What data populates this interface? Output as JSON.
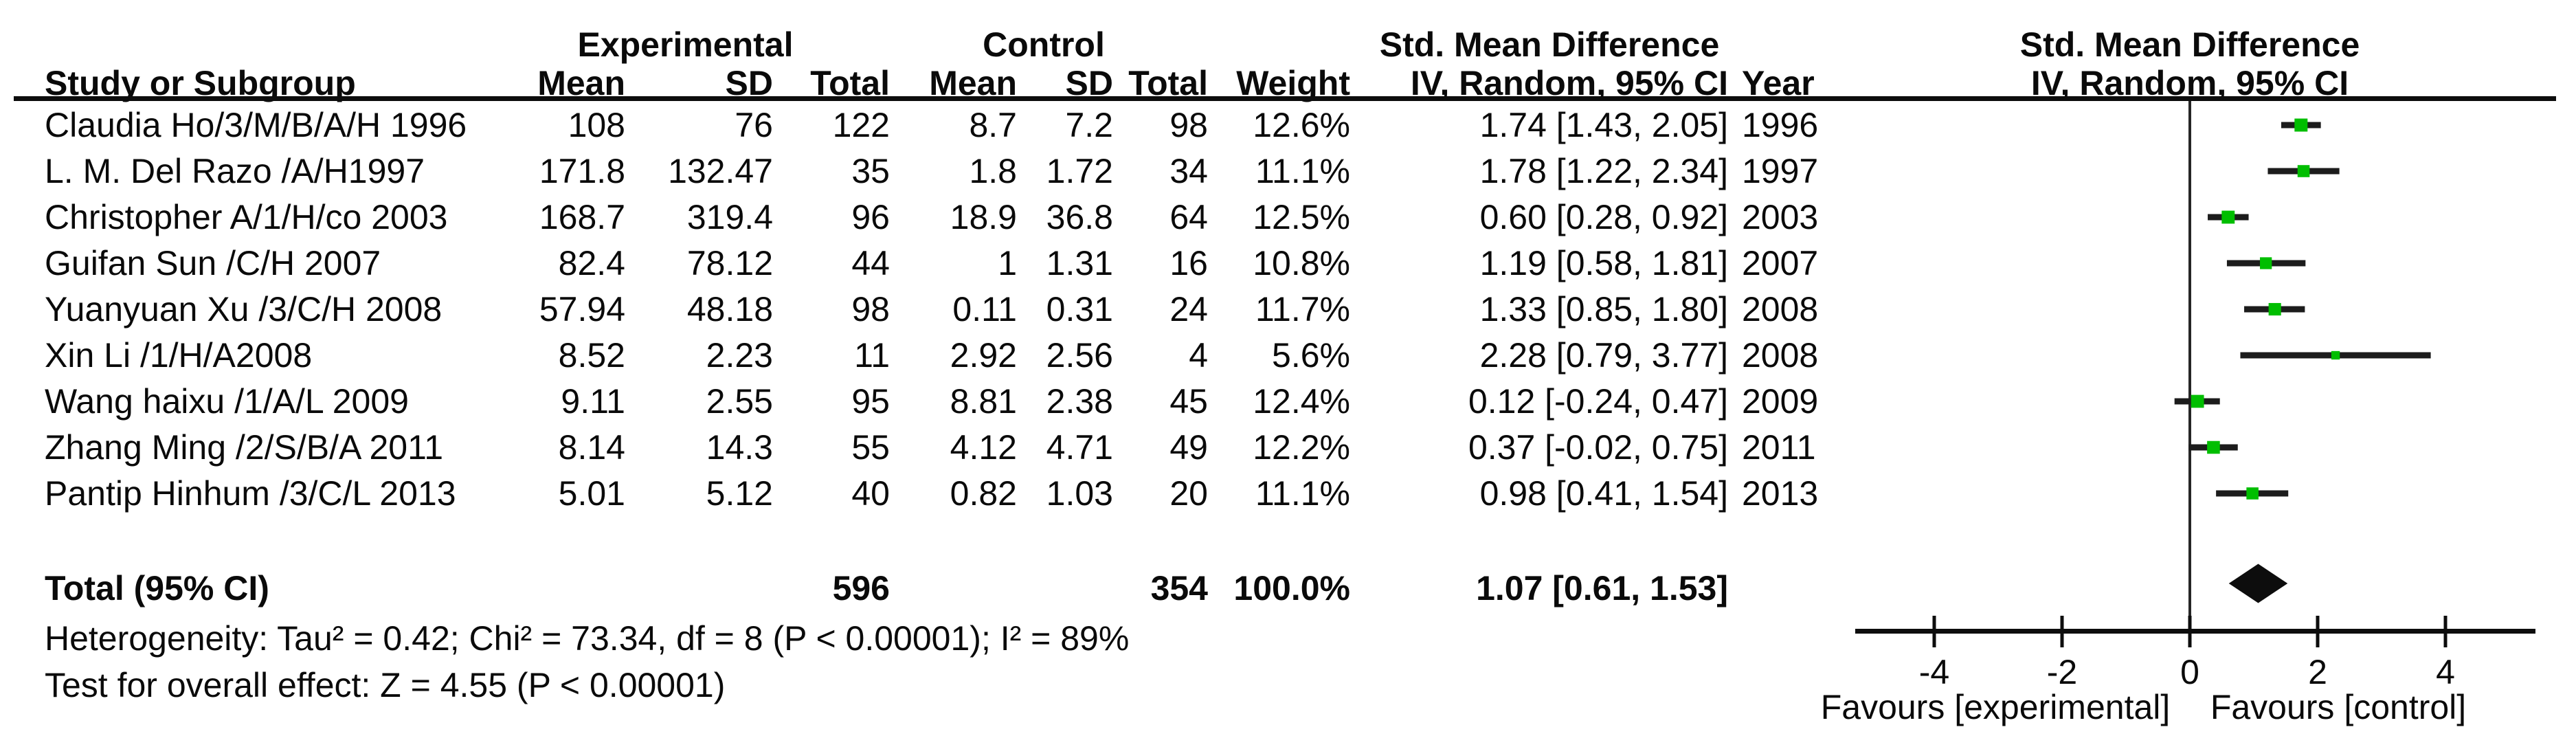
{
  "headers": {
    "group_experimental": "Experimental",
    "group_control": "Control",
    "group_smd": "Std. Mean Difference",
    "study": "Study or Subgroup",
    "mean": "Mean",
    "sd": "SD",
    "total": "Total",
    "weight": "Weight",
    "iv_random": "IV, Random, 95% CI",
    "year": "Year",
    "plot_line1": "Std. Mean Difference",
    "plot_line2": "IV, Random, 95% CI"
  },
  "chart_data": {
    "type": "forest",
    "effect_measure": "Std. Mean Difference (IV, Random, 95% CI)",
    "marker_color": "#00BE00",
    "line_color": "#1c1c1c",
    "diamond_color": "#0d0d0d",
    "studies": [
      {
        "name": "Claudia Ho/3/M/B/A/H 1996",
        "exp_mean": "108",
        "exp_sd": "76",
        "exp_total": "122",
        "ctrl_mean": "8.7",
        "ctrl_sd": "7.2",
        "ctrl_total": "98",
        "weight": "12.6%",
        "weight_value": 12.6,
        "smd_text": "1.74 [1.43, 2.05]",
        "year": "1996",
        "est": 1.74,
        "lo": 1.43,
        "hi": 2.05
      },
      {
        "name": "L. M. Del Razo /A/H1997",
        "exp_mean": "171.8",
        "exp_sd": "132.47",
        "exp_total": "35",
        "ctrl_mean": "1.8",
        "ctrl_sd": "1.72",
        "ctrl_total": "34",
        "weight": "11.1%",
        "weight_value": 11.1,
        "smd_text": "1.78 [1.22, 2.34]",
        "year": "1997",
        "est": 1.78,
        "lo": 1.22,
        "hi": 2.34
      },
      {
        "name": "Christopher A/1/H/co 2003",
        "exp_mean": "168.7",
        "exp_sd": "319.4",
        "exp_total": "96",
        "ctrl_mean": "18.9",
        "ctrl_sd": "36.8",
        "ctrl_total": "64",
        "weight": "12.5%",
        "weight_value": 12.5,
        "smd_text": "0.60 [0.28, 0.92]",
        "year": "2003",
        "est": 0.6,
        "lo": 0.28,
        "hi": 0.92
      },
      {
        "name": "Guifan Sun /C/H 2007",
        "exp_mean": "82.4",
        "exp_sd": "78.12",
        "exp_total": "44",
        "ctrl_mean": "1",
        "ctrl_sd": "1.31",
        "ctrl_total": "16",
        "weight": "10.8%",
        "weight_value": 10.8,
        "smd_text": "1.19 [0.58, 1.81]",
        "year": "2007",
        "est": 1.19,
        "lo": 0.58,
        "hi": 1.81
      },
      {
        "name": "Yuanyuan Xu /3/C/H 2008",
        "exp_mean": "57.94",
        "exp_sd": "48.18",
        "exp_total": "98",
        "ctrl_mean": "0.11",
        "ctrl_sd": "0.31",
        "ctrl_total": "24",
        "weight": "11.7%",
        "weight_value": 11.7,
        "smd_text": "1.33 [0.85, 1.80]",
        "year": "2008",
        "est": 1.33,
        "lo": 0.85,
        "hi": 1.8
      },
      {
        "name": "Xin Li /1/H/A2008",
        "exp_mean": "8.52",
        "exp_sd": "2.23",
        "exp_total": "11",
        "ctrl_mean": "2.92",
        "ctrl_sd": "2.56",
        "ctrl_total": "4",
        "weight": "5.6%",
        "weight_value": 5.6,
        "smd_text": "2.28 [0.79, 3.77]",
        "year": "2008",
        "est": 2.28,
        "lo": 0.79,
        "hi": 3.77
      },
      {
        "name": "Wang haixu /1/A/L 2009",
        "exp_mean": "9.11",
        "exp_sd": "2.55",
        "exp_total": "95",
        "ctrl_mean": "8.81",
        "ctrl_sd": "2.38",
        "ctrl_total": "45",
        "weight": "12.4%",
        "weight_value": 12.4,
        "smd_text": "0.12 [-0.24, 0.47]",
        "year": "2009",
        "est": 0.12,
        "lo": -0.24,
        "hi": 0.47
      },
      {
        "name": "Zhang Ming /2/S/B/A 2011",
        "exp_mean": "8.14",
        "exp_sd": "14.3",
        "exp_total": "55",
        "ctrl_mean": "4.12",
        "ctrl_sd": "4.71",
        "ctrl_total": "49",
        "weight": "12.2%",
        "weight_value": 12.2,
        "smd_text": "0.37 [-0.02, 0.75]",
        "year": "2011",
        "est": 0.37,
        "lo": -0.02,
        "hi": 0.75
      },
      {
        "name": "Pantip Hinhum /3/C/L 2013",
        "exp_mean": "5.01",
        "exp_sd": "5.12",
        "exp_total": "40",
        "ctrl_mean": "0.82",
        "ctrl_sd": "1.03",
        "ctrl_total": "20",
        "weight": "11.1%",
        "weight_value": 11.1,
        "smd_text": "0.98 [0.41, 1.54]",
        "year": "2013",
        "est": 0.98,
        "lo": 0.41,
        "hi": 1.54
      }
    ],
    "total": {
      "label": "Total (95% CI)",
      "exp_total": "596",
      "ctrl_total": "354",
      "weight": "100.0%",
      "smd_text": "1.07 [0.61, 1.53]",
      "est": 1.07,
      "lo": 0.61,
      "hi": 1.53
    },
    "heterogeneity": "Heterogeneity: Tau² = 0.42; Chi² = 73.34, df = 8 (P < 0.00001); I² = 89%",
    "overall_effect": "Test for overall effect: Z = 4.55 (P < 0.00001)",
    "axis": {
      "ticks": [
        -4,
        -2,
        0,
        2,
        4
      ],
      "xlim": [
        -5.2,
        5.4
      ],
      "favours_left": "Favours [experimental]",
      "favours_right": "Favours [control]"
    }
  }
}
